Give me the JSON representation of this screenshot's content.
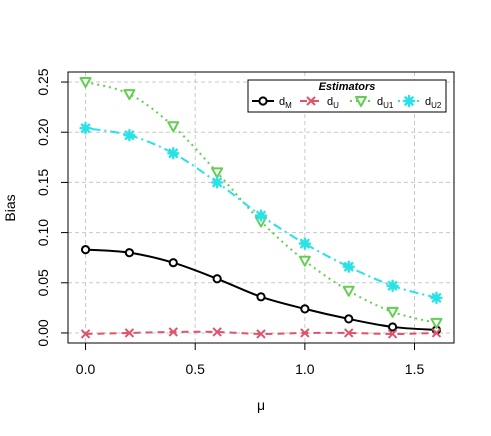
{
  "chart_data": {
    "type": "line",
    "xlabel": "μ",
    "ylabel": "Bias",
    "xlim": [
      -0.08,
      1.68
    ],
    "ylim": [
      -0.01,
      0.26
    ],
    "xticks": [
      "0.0",
      "0.5",
      "1.0",
      "1.5"
    ],
    "xtick_values": [
      0,
      0.5,
      1.0,
      1.5
    ],
    "yticks": [
      "0.00",
      "0.05",
      "0.10",
      "0.15",
      "0.20",
      "0.25"
    ],
    "ytick_values": [
      0,
      0.05,
      0.1,
      0.15,
      0.2,
      0.25
    ],
    "grid": true,
    "legend": {
      "title": "Estimators",
      "placement": "top-right",
      "entries": [
        {
          "base": "d",
          "sub": "M"
        },
        {
          "base": "d",
          "sub": "U"
        },
        {
          "base": "d",
          "sub": "U1"
        },
        {
          "base": "d",
          "sub": "U2"
        }
      ]
    },
    "x": [
      0,
      0.2,
      0.4,
      0.6,
      0.8,
      1.0,
      1.2,
      1.4,
      1.6
    ],
    "series": [
      {
        "name": "dM",
        "color": "#000000",
        "marker": "circle",
        "line": "solid",
        "values": [
          0.083,
          0.08,
          0.07,
          0.054,
          0.036,
          0.024,
          0.014,
          0.006,
          0.003
        ]
      },
      {
        "name": "dU",
        "color": "#DF536B",
        "marker": "cross",
        "line": "dashed",
        "values": [
          -0.001,
          0.0,
          0.001,
          0.001,
          -0.001,
          0.0,
          0.0,
          -0.001,
          0.0
        ]
      },
      {
        "name": "dU1",
        "color": "#61D04F",
        "marker": "triangle-down",
        "line": "dotted",
        "values": [
          0.25,
          0.238,
          0.206,
          0.16,
          0.111,
          0.072,
          0.042,
          0.021,
          0.01
        ]
      },
      {
        "name": "dU2",
        "color": "#28E2E5",
        "marker": "asterisk",
        "line": "dotdash",
        "values": [
          0.204,
          0.197,
          0.179,
          0.15,
          0.117,
          0.089,
          0.066,
          0.047,
          0.035
        ]
      }
    ]
  }
}
